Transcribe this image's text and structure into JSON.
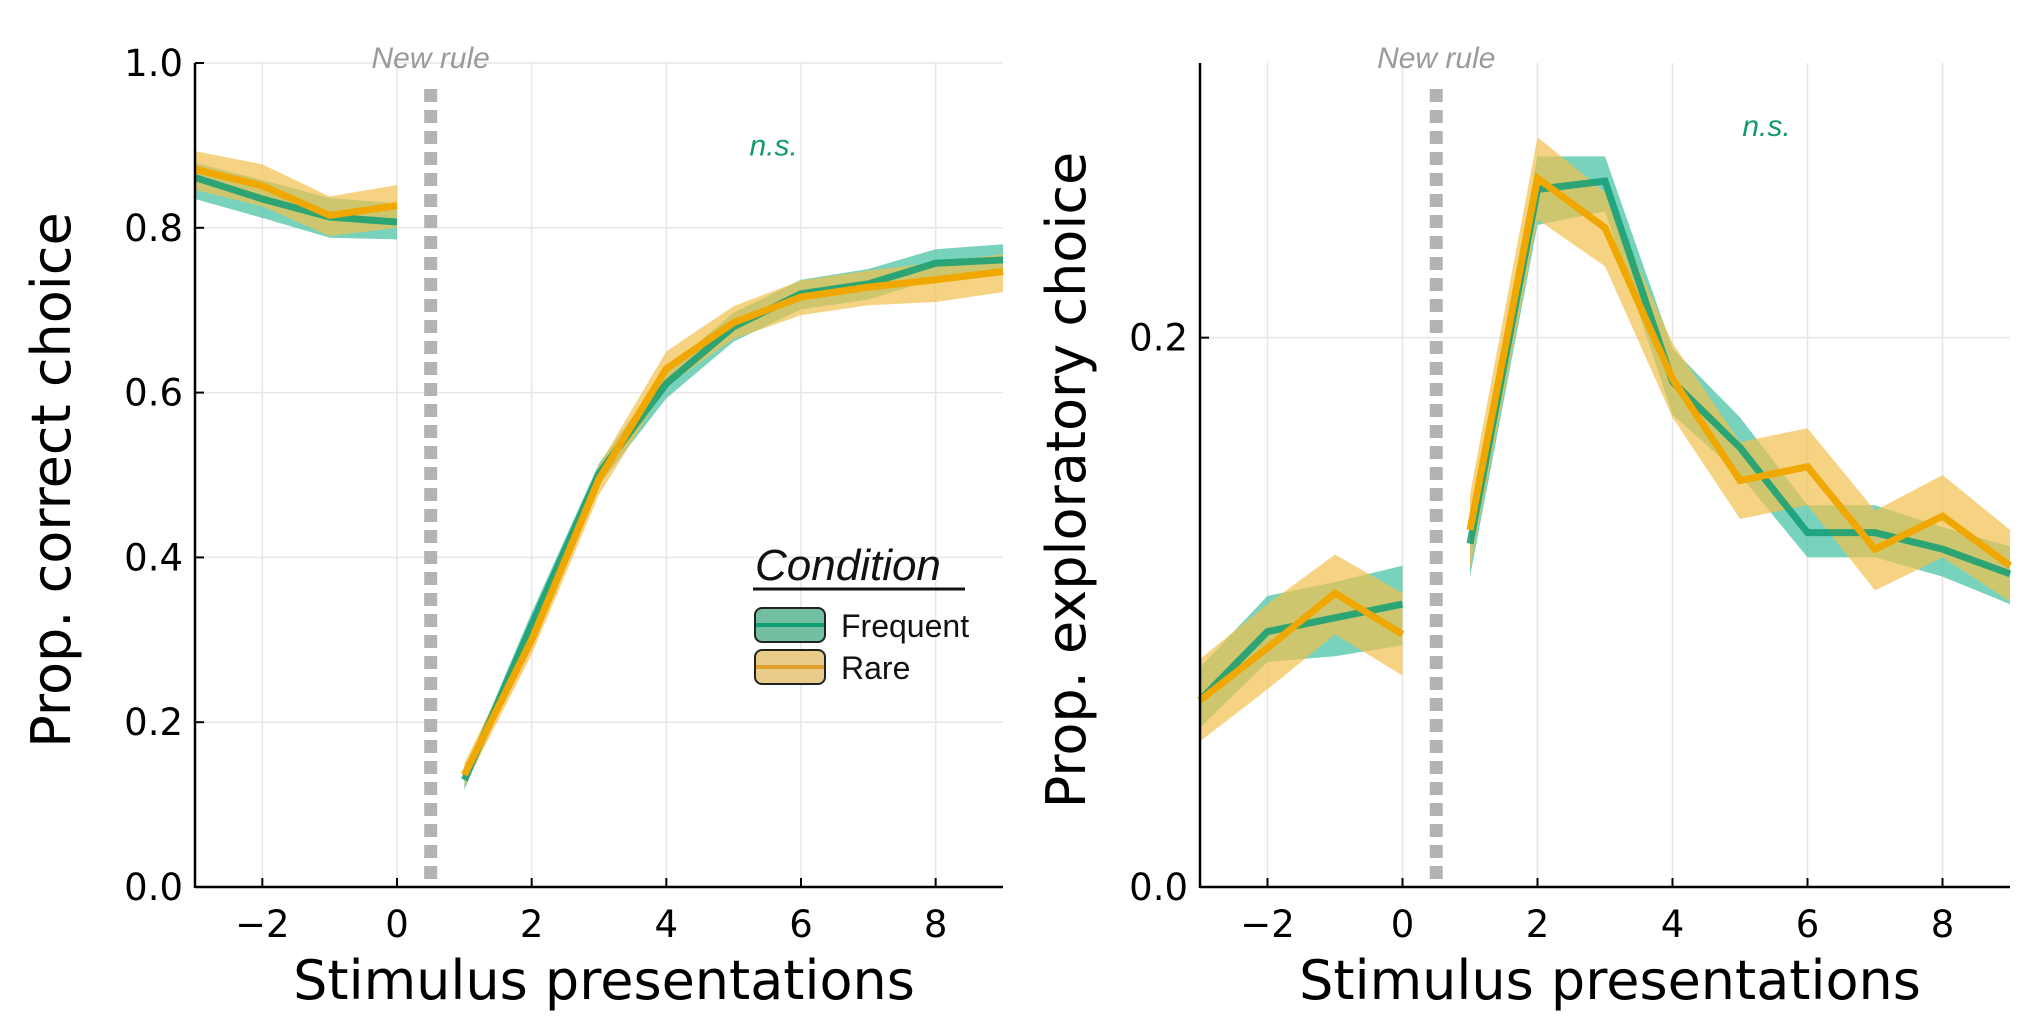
{
  "chart_data": [
    {
      "type": "line",
      "panel": "left",
      "title": "",
      "xlabel": "Stimulus presentations",
      "ylabel": "Prop. correct choice",
      "xlim": [
        -3,
        9
      ],
      "ylim": [
        0,
        1.0
      ],
      "xticks": [
        -2,
        0,
        2,
        4,
        6,
        8
      ],
      "xtick_labels": [
        "−2",
        "0",
        "2",
        "4",
        "6",
        "8"
      ],
      "yticks": [
        0,
        0.2,
        0.4,
        0.6,
        0.8,
        1.0
      ],
      "ytick_labels": [
        "0.0",
        "0.2",
        "0.4",
        "0.6",
        "0.8",
        "1.0"
      ],
      "grid": true,
      "vline": {
        "x": 0.5,
        "style": "dotted",
        "label": "New rule"
      },
      "annotation": {
        "text": "n.s.",
        "x": 5,
        "y": 0.9
      },
      "legend": {
        "title": "Condition",
        "placement": "center-right",
        "entries": [
          "Frequent",
          "Rare"
        ]
      },
      "series": [
        {
          "name": "Frequent",
          "color": "#0f9d74",
          "band_color": "#3fbf9f",
          "segments": [
            {
              "x": [
                -3,
                -2,
                -1,
                0
              ],
              "y": [
                0.861,
                0.835,
                0.813,
                0.807
              ],
              "lower": [
                0.835,
                0.812,
                0.788,
                0.786
              ],
              "upper": [
                0.879,
                0.858,
                0.836,
                0.83
              ]
            },
            {
              "x": [
                1,
                2,
                3,
                4,
                5,
                6,
                7,
                8,
                9
              ],
              "y": [
                0.13,
                0.318,
                0.502,
                0.611,
                0.68,
                0.72,
                0.732,
                0.757,
                0.761
              ],
              "lower": [
                0.118,
                0.303,
                0.488,
                0.593,
                0.662,
                0.701,
                0.713,
                0.738,
                0.743
              ],
              "upper": [
                0.14,
                0.333,
                0.514,
                0.628,
                0.697,
                0.737,
                0.75,
                0.774,
                0.78
              ]
            }
          ]
        },
        {
          "name": "Rare",
          "color": "#f0a800",
          "band_color": "#f2c14e",
          "segments": [
            {
              "x": [
                -3,
                -2,
                -1,
                0
              ],
              "y": [
                0.871,
                0.851,
                0.815,
                0.827
              ],
              "lower": [
                0.846,
                0.826,
                0.79,
                0.8
              ],
              "upper": [
                0.893,
                0.877,
                0.838,
                0.852
              ]
            },
            {
              "x": [
                1,
                2,
                3,
                4,
                5,
                6,
                7,
                8,
                9
              ],
              "y": [
                0.136,
                0.3,
                0.495,
                0.629,
                0.685,
                0.716,
                0.728,
                0.737,
                0.747
              ],
              "lower": [
                0.122,
                0.282,
                0.476,
                0.608,
                0.665,
                0.694,
                0.706,
                0.71,
                0.722
              ],
              "upper": [
                0.15,
                0.318,
                0.512,
                0.65,
                0.705,
                0.736,
                0.748,
                0.758,
                0.768
              ]
            }
          ]
        }
      ]
    },
    {
      "type": "line",
      "panel": "right",
      "title": "",
      "xlabel": "Stimulus presentations",
      "ylabel": "Prop. exploratory choice",
      "xlim": [
        -3,
        9
      ],
      "ylim": [
        0,
        0.3
      ],
      "xticks": [
        -2,
        0,
        2,
        4,
        6,
        8
      ],
      "xtick_labels": [
        "−2",
        "0",
        "2",
        "4",
        "6",
        "8"
      ],
      "yticks": [
        0,
        0.2
      ],
      "ytick_labels": [
        "0.0",
        "0.2"
      ],
      "grid": true,
      "vline": {
        "x": 0.5,
        "style": "dotted",
        "label": "New rule"
      },
      "annotation": {
        "text": "n.s.",
        "x": 4.8,
        "y": 0.277
      },
      "series": [
        {
          "name": "Frequent",
          "color": "#0f9d74",
          "band_color": "#3fbf9f",
          "segments": [
            {
              "x": [
                -3,
                -2,
                -1,
                0
              ],
              "y": [
                0.068,
                0.093,
                0.098,
                0.103
              ],
              "lower": [
                0.058,
                0.082,
                0.084,
                0.088
              ],
              "upper": [
                0.08,
                0.106,
                0.111,
                0.117
              ]
            },
            {
              "x": [
                1,
                2,
                3,
                4,
                5,
                6,
                7,
                8,
                9
              ],
              "y": [
                0.125,
                0.254,
                0.257,
                0.184,
                0.16,
                0.129,
                0.129,
                0.123,
                0.114
              ],
              "lower": [
                0.113,
                0.241,
                0.246,
                0.172,
                0.15,
                0.12,
                0.12,
                0.113,
                0.103
              ],
              "upper": [
                0.134,
                0.266,
                0.266,
                0.196,
                0.171,
                0.139,
                0.139,
                0.131,
                0.124
              ]
            }
          ]
        },
        {
          "name": "Rare",
          "color": "#f0a800",
          "band_color": "#f2c14e",
          "segments": [
            {
              "x": [
                -3,
                -2,
                -1,
                0
              ],
              "y": [
                0.068,
                0.087,
                0.107,
                0.092
              ],
              "lower": [
                0.053,
                0.072,
                0.092,
                0.077
              ],
              "upper": [
                0.083,
                0.103,
                0.121,
                0.107
              ]
            },
            {
              "x": [
                1,
                2,
                3,
                4,
                5,
                6,
                7,
                8,
                9
              ],
              "y": [
                0.13,
                0.258,
                0.24,
                0.185,
                0.148,
                0.153,
                0.123,
                0.135,
                0.117
              ],
              "lower": [
                0.116,
                0.243,
                0.226,
                0.171,
                0.134,
                0.139,
                0.108,
                0.12,
                0.104
              ],
              "upper": [
                0.143,
                0.273,
                0.253,
                0.198,
                0.162,
                0.167,
                0.137,
                0.15,
                0.13
              ]
            }
          ]
        }
      ]
    }
  ]
}
